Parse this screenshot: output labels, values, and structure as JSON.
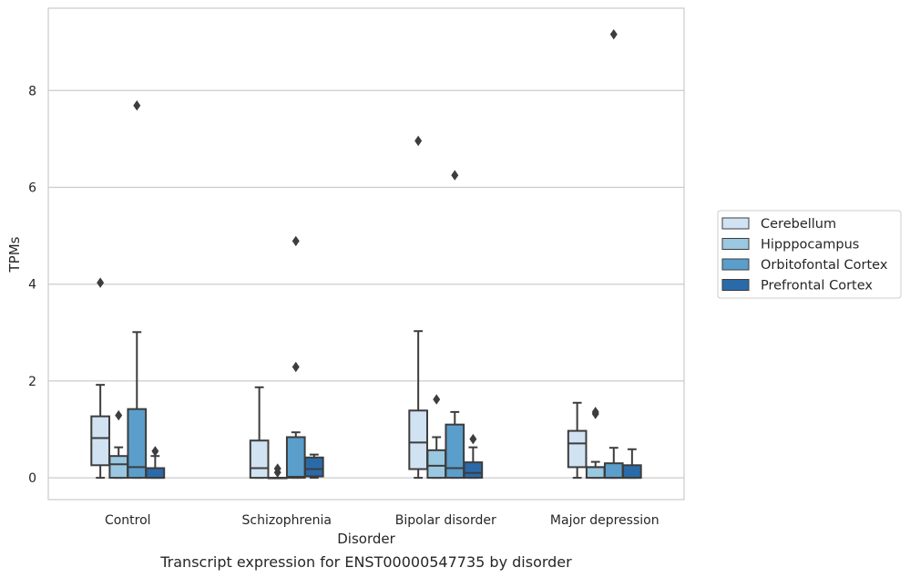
{
  "chart_data": {
    "type": "box",
    "caption": "Transcript expression for ENST00000547735 by disorder",
    "xlabel": "Disorder",
    "ylabel": "TPMs",
    "ylim": [
      -0.45,
      9.7
    ],
    "yticks": [
      0,
      2,
      4,
      6,
      8
    ],
    "grid": "horizontal",
    "legend_position": "right",
    "categories": [
      "Control",
      "Schizophrenia",
      "Bipolar disorder",
      "Major depression"
    ],
    "series": [
      {
        "name": "Cerebellum",
        "color": "#d1e2f2",
        "boxes": [
          {
            "low": 0,
            "q1": 0.26,
            "median": 0.82,
            "q3": 1.27,
            "high": 1.92,
            "outliers": [
              4.03
            ]
          },
          {
            "low": 0,
            "q1": 0,
            "median": 0.2,
            "q3": 0.77,
            "high": 1.87,
            "outliers": []
          },
          {
            "low": 0,
            "q1": 0.18,
            "median": 0.73,
            "q3": 1.39,
            "high": 3.03,
            "outliers": [
              6.96
            ]
          },
          {
            "low": 0,
            "q1": 0.22,
            "median": 0.71,
            "q3": 0.97,
            "high": 1.55,
            "outliers": []
          }
        ]
      },
      {
        "name": "Hipppocampus",
        "color": "#9ac8e0",
        "boxes": [
          {
            "low": 0,
            "q1": 0,
            "median": 0.28,
            "q3": 0.45,
            "high": 0.63,
            "outliers": [
              1.29
            ]
          },
          {
            "low": 0,
            "q1": 0,
            "median": 0,
            "q3": 0,
            "high": 0,
            "outliers": [
              0.11,
              0.19
            ]
          },
          {
            "low": 0,
            "q1": 0,
            "median": 0.25,
            "q3": 0.57,
            "high": 0.84,
            "outliers": [
              1.62
            ]
          },
          {
            "low": 0,
            "q1": 0,
            "median": 0.22,
            "q3": 0.22,
            "high": 0.33,
            "outliers": [
              1.32,
              1.36
            ]
          }
        ]
      },
      {
        "name": "Orbitofontal Cortex",
        "color": "#5a9ecb",
        "boxes": [
          {
            "low": 0,
            "q1": 0,
            "median": 0.22,
            "q3": 1.42,
            "high": 3.01,
            "outliers": [
              7.69
            ]
          },
          {
            "low": 0,
            "q1": 0,
            "median": 0.02,
            "q3": 0.84,
            "high": 0.94,
            "outliers": [
              2.29,
              4.89
            ]
          },
          {
            "low": 0,
            "q1": 0,
            "median": 0.2,
            "q3": 1.1,
            "high": 1.36,
            "outliers": [
              6.25
            ]
          },
          {
            "low": 0,
            "q1": 0,
            "median": 0,
            "q3": 0.3,
            "high": 0.62,
            "outliers": [
              9.16
            ]
          }
        ]
      },
      {
        "name": "Prefrontal Cortex",
        "color": "#2a6aa9",
        "boxes": [
          {
            "low": 0,
            "q1": 0,
            "median": 0,
            "q3": 0.2,
            "high": 0.45,
            "outliers": [
              0.55
            ]
          },
          {
            "low": 0,
            "q1": 0.03,
            "median": 0.18,
            "q3": 0.42,
            "high": 0.48,
            "outliers": []
          },
          {
            "low": 0,
            "q1": 0,
            "median": 0.1,
            "q3": 0.32,
            "high": 0.63,
            "outliers": [
              0.8
            ]
          },
          {
            "low": 0,
            "q1": 0,
            "median": 0,
            "q3": 0.26,
            "high": 0.59,
            "outliers": []
          }
        ]
      }
    ]
  }
}
